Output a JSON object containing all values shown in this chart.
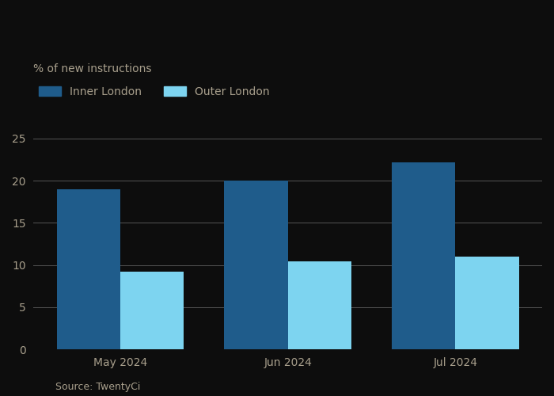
{
  "title": "% of new instructions",
  "source": "Source: TwentyCi",
  "categories": [
    "May 2024",
    "Jun 2024",
    "Jul 2024"
  ],
  "series": [
    {
      "name": "Inner London",
      "values": [
        19.0,
        20.0,
        22.2
      ],
      "color": "#1f5c8b"
    },
    {
      "name": "Outer London",
      "values": [
        9.2,
        10.4,
        11.0
      ],
      "color": "#7dd4f0"
    }
  ],
  "ylim": [
    0,
    27
  ],
  "yticks": [
    0,
    5,
    10,
    15,
    20,
    25
  ],
  "bar_width": 0.38,
  "background_color": "#0d0d0d",
  "plot_bg_color": "#0d0d0d",
  "text_color": "#a89f8c",
  "grid_color": "#555555",
  "title_fontsize": 10,
  "tick_fontsize": 10,
  "legend_fontsize": 10,
  "source_fontsize": 9
}
